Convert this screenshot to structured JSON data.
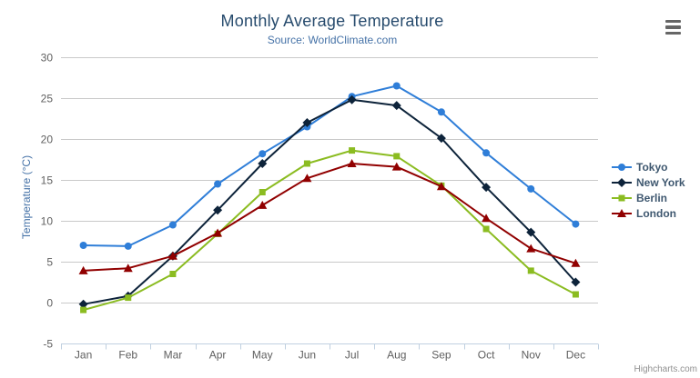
{
  "credits": {
    "label": "Highcharts.com"
  },
  "palette": {
    "title": "#274b6d",
    "subtitle": "#4572a7",
    "axis_title": "#4572a7",
    "axis_label": "#606060",
    "grid_line": "#c9c9c9",
    "axis_line": "#c0d0e0",
    "legend_text": "#3e576f",
    "credit": "#909090",
    "menu_icon": "#666666",
    "background": "#ffffff"
  },
  "chart_data": {
    "type": "line",
    "title": "Monthly Average Temperature",
    "subtitle": "Source: WorldClimate.com",
    "xlabel": "",
    "ylabel": "Temperature (°C)",
    "ylim": [
      -5,
      30
    ],
    "yticks": [
      -5,
      0,
      5,
      10,
      15,
      20,
      25,
      30
    ],
    "grid": true,
    "legend_position": "right",
    "categories": [
      "Jan",
      "Feb",
      "Mar",
      "Apr",
      "May",
      "Jun",
      "Jul",
      "Aug",
      "Sep",
      "Oct",
      "Nov",
      "Dec"
    ],
    "series": [
      {
        "name": "Tokyo",
        "color": "#2f7ed8",
        "marker": "circle",
        "values": [
          7.0,
          6.9,
          9.5,
          14.5,
          18.2,
          21.5,
          25.2,
          26.5,
          23.3,
          18.3,
          13.9,
          9.6
        ]
      },
      {
        "name": "New York",
        "color": "#0d233a",
        "marker": "diamond",
        "values": [
          -0.2,
          0.8,
          5.7,
          11.3,
          17.0,
          22.0,
          24.8,
          24.1,
          20.1,
          14.1,
          8.6,
          2.5
        ]
      },
      {
        "name": "Berlin",
        "color": "#8bbc21",
        "marker": "square",
        "values": [
          -0.9,
          0.6,
          3.5,
          8.4,
          13.5,
          17.0,
          18.6,
          17.9,
          14.3,
          9.0,
          3.9,
          1.0
        ]
      },
      {
        "name": "London",
        "color": "#910000",
        "marker": "triangle",
        "values": [
          3.9,
          4.2,
          5.7,
          8.5,
          11.9,
          15.2,
          17.0,
          16.6,
          14.2,
          10.3,
          6.6,
          4.8
        ]
      }
    ]
  }
}
